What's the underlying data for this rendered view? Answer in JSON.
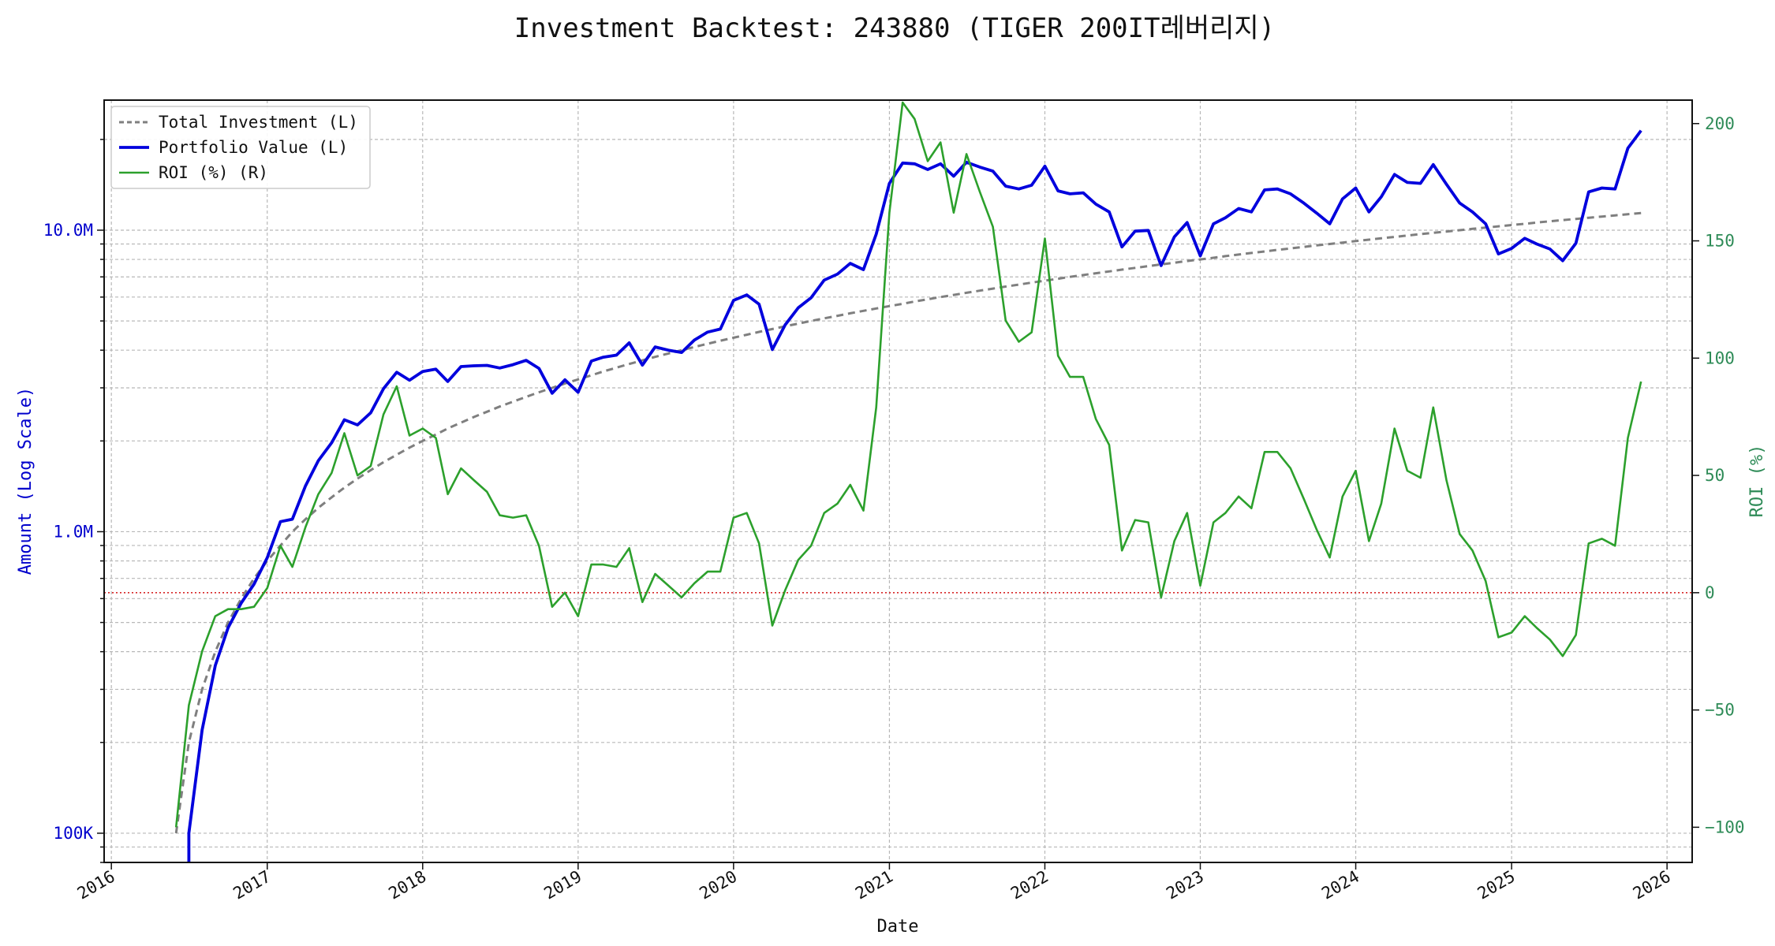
{
  "chart_data": {
    "type": "line",
    "title": "Investment Backtest: 243880 (TIGER 200IT레버리지)",
    "xlabel": "Date",
    "ylabel_left": "Amount (Log Scale)",
    "ylabel_right": "ROI (%)",
    "left_scale": "log",
    "left_ylim": [
      80000,
      27000000
    ],
    "right_ylim": [
      -115,
      210
    ],
    "x_range": [
      "2015-12-15",
      "2026-03-01"
    ],
    "x_ticks": [
      "2016",
      "2017",
      "2018",
      "2019",
      "2020",
      "2021",
      "2022",
      "2023",
      "2024",
      "2025",
      "2026"
    ],
    "left_ticks": [
      {
        "value": 100000,
        "label": "100K"
      },
      {
        "value": 1000000,
        "label": "1.0M"
      },
      {
        "value": 10000000,
        "label": "10.0M"
      }
    ],
    "right_ticks": [
      -100,
      -50,
      0,
      50,
      100,
      150,
      200
    ],
    "grid": true,
    "reference_line": {
      "axis": "right",
      "value": 0,
      "color": "#d62728",
      "style": "dotted"
    },
    "legend": {
      "placement": "top-left",
      "entries": [
        "Total Investment (L)",
        "Portfolio Value (L)",
        "ROI (%) (R)"
      ]
    },
    "colors": {
      "investment": "#7f7f7f",
      "portfolio": "#0000dd",
      "roi": "#2ca02c",
      "left_axis_text": "#0000cc",
      "right_axis_text": "#2e8b57",
      "zero_line": "#d62728"
    },
    "dates": [
      "2016-06-01",
      "2016-07-01",
      "2016-08-01",
      "2016-09-01",
      "2016-10-01",
      "2016-11-01",
      "2016-12-01",
      "2017-01-01",
      "2017-02-01",
      "2017-03-01",
      "2017-04-01",
      "2017-05-01",
      "2017-06-01",
      "2017-07-01",
      "2017-08-01",
      "2017-09-01",
      "2017-10-01",
      "2017-11-01",
      "2017-12-01",
      "2018-01-01",
      "2018-02-01",
      "2018-03-01",
      "2018-04-01",
      "2018-05-01",
      "2018-06-01",
      "2018-07-01",
      "2018-08-01",
      "2018-09-01",
      "2018-10-01",
      "2018-11-01",
      "2018-12-01",
      "2019-01-01",
      "2019-02-01",
      "2019-03-01",
      "2019-04-01",
      "2019-05-01",
      "2019-06-01",
      "2019-07-01",
      "2019-08-01",
      "2019-09-01",
      "2019-10-01",
      "2019-11-01",
      "2019-12-01",
      "2020-01-01",
      "2020-02-01",
      "2020-03-01",
      "2020-04-01",
      "2020-05-01",
      "2020-06-01",
      "2020-07-01",
      "2020-08-01",
      "2020-09-01",
      "2020-10-01",
      "2020-11-01",
      "2020-12-01",
      "2021-01-01",
      "2021-02-01",
      "2021-03-01",
      "2021-04-01",
      "2021-05-01",
      "2021-06-01",
      "2021-07-01",
      "2021-08-01",
      "2021-09-01",
      "2021-10-01",
      "2021-11-01",
      "2021-12-01",
      "2022-01-01",
      "2022-02-01",
      "2022-03-01",
      "2022-04-01",
      "2022-05-01",
      "2022-06-01",
      "2022-07-01",
      "2022-08-01",
      "2022-09-01",
      "2022-10-01",
      "2022-11-01",
      "2022-12-01",
      "2023-01-01",
      "2023-02-01",
      "2023-03-01",
      "2023-04-01",
      "2023-05-01",
      "2023-06-01",
      "2023-07-01",
      "2023-08-01",
      "2023-09-01",
      "2023-10-01",
      "2023-11-01",
      "2023-12-01",
      "2024-01-01",
      "2024-02-01",
      "2024-03-01",
      "2024-04-01",
      "2024-05-01",
      "2024-06-01",
      "2024-07-01",
      "2024-08-01",
      "2024-09-01",
      "2024-10-01",
      "2024-11-01",
      "2024-12-01",
      "2025-01-01",
      "2025-02-01",
      "2025-03-01",
      "2025-04-01",
      "2025-05-01",
      "2025-06-01",
      "2025-07-01",
      "2025-08-01",
      "2025-09-01",
      "2025-10-01",
      "2025-11-01"
    ],
    "series": [
      {
        "name": "Total Investment (L)",
        "axis": "left",
        "values": [
          100000,
          200000,
          300000,
          400000,
          500000,
          600000,
          700000,
          800000,
          900000,
          1000000,
          1100000,
          1200000,
          1300000,
          1400000,
          1500000,
          1600000,
          1700000,
          1800000,
          1900000,
          2000000,
          2100000,
          2200000,
          2300000,
          2400000,
          2500000,
          2600000,
          2700000,
          2800000,
          2900000,
          3000000,
          3100000,
          3200000,
          3300000,
          3400000,
          3500000,
          3600000,
          3700000,
          3800000,
          3900000,
          4000000,
          4100000,
          4200000,
          4300000,
          4400000,
          4500000,
          4600000,
          4700000,
          4800000,
          4900000,
          5000000,
          5100000,
          5200000,
          5300000,
          5400000,
          5500000,
          5600000,
          5700000,
          5800000,
          5900000,
          6000000,
          6100000,
          6200000,
          6300000,
          6400000,
          6500000,
          6600000,
          6700000,
          6800000,
          6900000,
          7000000,
          7100000,
          7200000,
          7300000,
          7400000,
          7500000,
          7600000,
          7700000,
          7800000,
          7900000,
          8000000,
          8100000,
          8200000,
          8300000,
          8400000,
          8500000,
          8600000,
          8700000,
          8800000,
          8900000,
          9000000,
          9100000,
          9200000,
          9300000,
          9400000,
          9500000,
          9600000,
          9700000,
          9800000,
          9900000,
          10000000,
          10100000,
          10200000,
          10300000,
          10400000,
          10500000,
          10600000,
          10700000,
          10800000,
          10900000,
          11000000,
          11100000,
          11200000,
          11300000,
          11400000
        ]
      },
      {
        "name": "Portfolio Value (L)",
        "axis": "left",
        "values": [
          null,
          100000,
          220000,
          360000,
          480000,
          580000,
          670000,
          820000,
          1080000,
          1100000,
          1420000,
          1720000,
          1970000,
          2350000,
          2260000,
          2480000,
          2980000,
          3380000,
          3180000,
          3400000,
          3460000,
          3150000,
          3530000,
          3550000,
          3560000,
          3490000,
          3580000,
          3700000,
          3480000,
          2880000,
          3190000,
          2900000,
          3680000,
          3790000,
          3850000,
          4230000,
          3570000,
          4100000,
          4000000,
          3930000,
          4320000,
          4590000,
          4700000,
          5850000,
          6100000,
          5680000,
          4020000,
          4850000,
          5530000,
          5970000,
          6830000,
          7150000,
          7760000,
          7400000,
          9700000,
          14300000,
          16700000,
          16600000,
          15900000,
          16600000,
          15100000,
          16800000,
          16200000,
          15700000,
          14000000,
          13700000,
          14100000,
          16300000,
          13500000,
          13200000,
          13300000,
          12200000,
          11500000,
          8800000,
          9930000,
          9980000,
          7630000,
          9500000,
          10600000,
          8220000,
          10500000,
          11000000,
          11800000,
          11500000,
          13600000,
          13700000,
          13200000,
          12300000,
          11400000,
          10500000,
          12700000,
          13800000,
          11500000,
          12900000,
          15300000,
          14400000,
          14300000,
          16500000,
          14200000,
          12300000,
          11500000,
          10500000,
          8340000,
          8700000,
          9400000,
          9000000,
          8660000,
          7920000,
          9050000,
          13400000,
          13800000,
          13700000,
          18700000,
          21400000
        ]
      },
      {
        "name": "ROI (%) (R)",
        "axis": "right",
        "values": [
          -100,
          -48,
          -25,
          -10,
          -7,
          -7,
          -6,
          2,
          20,
          11,
          28,
          42,
          51,
          68,
          50,
          54,
          76,
          88,
          67,
          70,
          66,
          42,
          53,
          48,
          43,
          33,
          32,
          33,
          20,
          -6,
          0,
          -10,
          12,
          12,
          11,
          19,
          -4,
          8,
          3,
          -2,
          4,
          9,
          9,
          32,
          34,
          21,
          -14,
          1,
          14,
          20,
          34,
          38,
          46,
          35,
          79,
          162,
          209,
          202,
          184,
          192,
          162,
          187,
          171,
          156,
          116,
          107,
          111,
          151,
          101,
          92,
          92,
          74,
          63,
          18,
          31,
          30,
          -2,
          22,
          34,
          3,
          30,
          34,
          41,
          36,
          60,
          60,
          53,
          40,
          27,
          15,
          41,
          52,
          22,
          38,
          70,
          52,
          49,
          79,
          48,
          25,
          18,
          5,
          -19,
          -17,
          -10,
          -15,
          -20,
          -27,
          -18,
          21,
          23,
          20,
          66,
          90
        ]
      }
    ]
  }
}
